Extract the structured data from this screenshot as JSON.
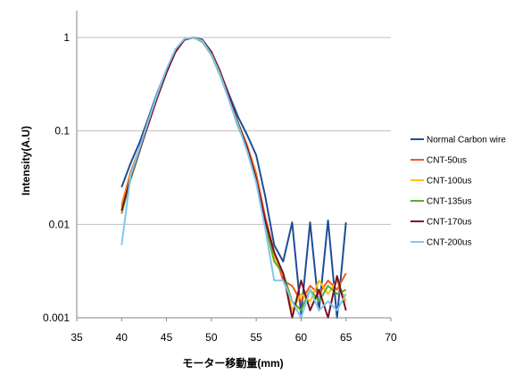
{
  "chart_data": {
    "type": "line",
    "title": "",
    "xlabel": "モーター移動量(mm)",
    "ylabel": "Intensity(A.U)",
    "xlim": [
      35,
      70
    ],
    "ylim": [
      0.001,
      1
    ],
    "yscale": "log",
    "grid": "horizontal",
    "legend_position": "right",
    "x_ticks": [
      "35",
      "40",
      "45",
      "50",
      "55",
      "60",
      "65",
      "70"
    ],
    "y_ticks": [
      "0.001",
      "0.01",
      "0.1",
      "1"
    ],
    "x": [
      40,
      41,
      42,
      43,
      44,
      45,
      46,
      47,
      48,
      49,
      50,
      51,
      52,
      53,
      54,
      55,
      56,
      57,
      58,
      59,
      60,
      61,
      62,
      63,
      64,
      65
    ],
    "series": [
      {
        "name": "Normal Carbon wire",
        "color": "#1F4E96",
        "values": [
          0.025,
          0.045,
          0.075,
          0.14,
          0.26,
          0.45,
          0.72,
          0.95,
          1.0,
          0.95,
          0.7,
          0.42,
          0.24,
          0.14,
          0.09,
          0.055,
          0.02,
          0.006,
          0.004,
          0.0105,
          0.0011,
          0.0105,
          0.0012,
          0.011,
          0.001,
          0.0105
        ]
      },
      {
        "name": "CNT-50us",
        "color": "#F45A20",
        "values": [
          0.016,
          0.036,
          0.065,
          0.13,
          0.24,
          0.43,
          0.7,
          0.94,
          1.0,
          0.92,
          0.66,
          0.4,
          0.22,
          0.12,
          0.07,
          0.035,
          0.012,
          0.005,
          0.0025,
          0.0022,
          0.0015,
          0.0022,
          0.0018,
          0.0025,
          0.002,
          0.003
        ]
      },
      {
        "name": "CNT-100us",
        "color": "#FFC000",
        "values": [
          0.015,
          0.034,
          0.064,
          0.13,
          0.25,
          0.45,
          0.74,
          0.96,
          1.0,
          0.93,
          0.68,
          0.41,
          0.22,
          0.12,
          0.068,
          0.032,
          0.011,
          0.0045,
          0.003,
          0.0012,
          0.0018,
          0.0015,
          0.0025,
          0.0018,
          0.0025,
          0.0015
        ]
      },
      {
        "name": "CNT-135us",
        "color": "#5BAA2F",
        "values": [
          0.013,
          0.03,
          0.06,
          0.125,
          0.24,
          0.44,
          0.73,
          0.96,
          1.0,
          0.9,
          0.65,
          0.39,
          0.21,
          0.11,
          0.065,
          0.03,
          0.01,
          0.004,
          0.003,
          0.0015,
          0.0012,
          0.002,
          0.0015,
          0.0022,
          0.0018,
          0.002
        ]
      },
      {
        "name": "CNT-170us",
        "color": "#7A1026",
        "values": [
          0.014,
          0.032,
          0.062,
          0.12,
          0.23,
          0.42,
          0.7,
          0.95,
          1.0,
          0.93,
          0.7,
          0.43,
          0.23,
          0.12,
          0.066,
          0.031,
          0.011,
          0.005,
          0.003,
          0.001,
          0.0025,
          0.0012,
          0.002,
          0.001,
          0.0028,
          0.0012
        ]
      },
      {
        "name": "CNT-200us",
        "color": "#7EC8EE",
        "values": [
          0.006,
          0.033,
          0.065,
          0.13,
          0.25,
          0.46,
          0.75,
          0.97,
          1.0,
          0.92,
          0.66,
          0.4,
          0.21,
          0.115,
          0.06,
          0.028,
          0.009,
          0.0025,
          0.0025,
          0.0015,
          0.001,
          0.002,
          0.0012,
          0.0015,
          0.0012,
          0.0018
        ]
      }
    ]
  }
}
